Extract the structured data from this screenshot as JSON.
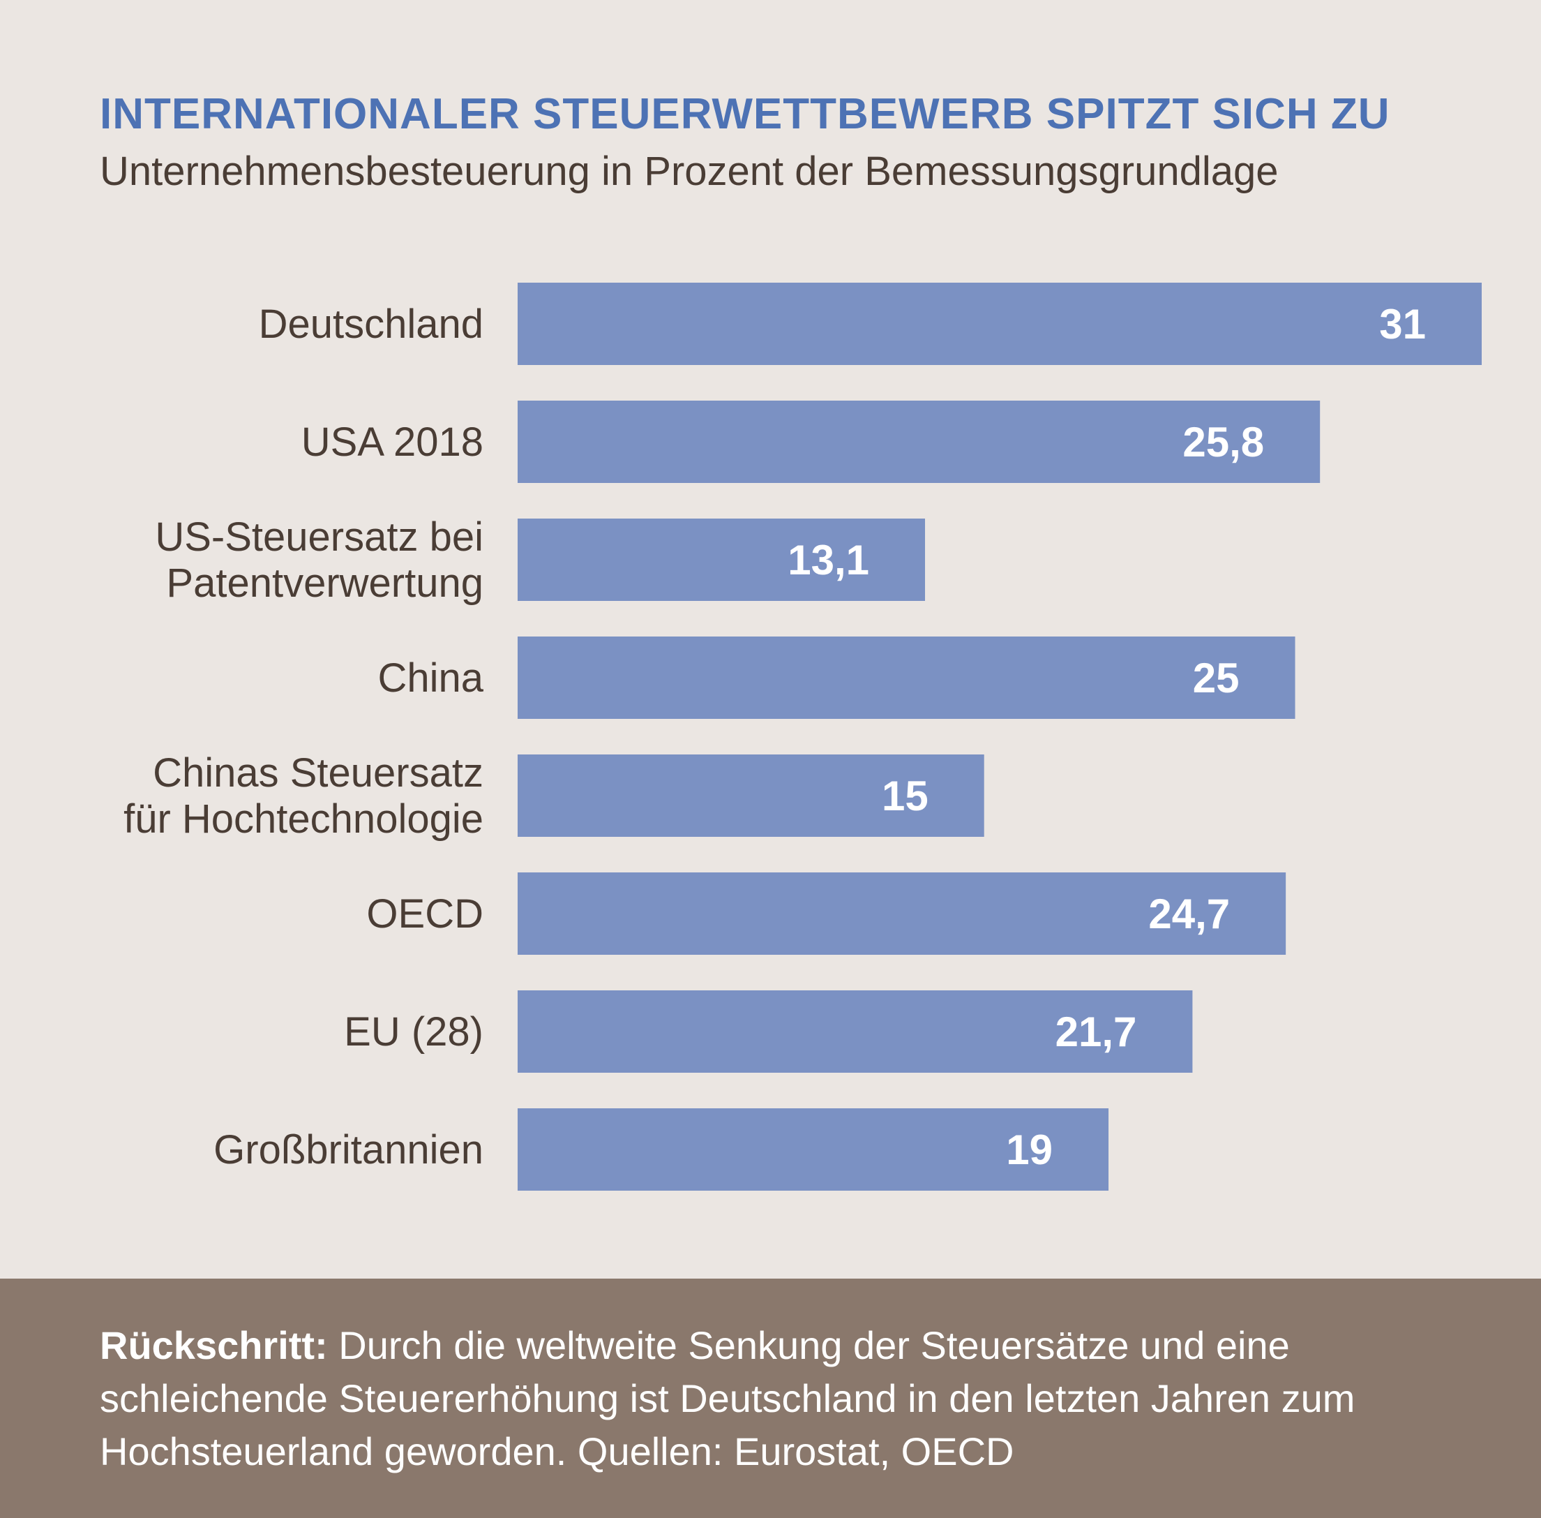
{
  "title": "INTERNATIONALER STEUERWETTBEWERB SPITZT SICH ZU",
  "subtitle": "Unternehmensbesteuerung in Prozent der Bemessungsgrundlage",
  "footer": {
    "lead": "Rückschritt:",
    "text": " Durch die weltweite Senkung der Steuersätze und eine schleichende Steuererhöhung ist Deutschland in den letzten Jahren zum Hochsteuerland geworden. Quellen: Eurostat, OECD"
  },
  "colors": {
    "bar": "#7b91c3",
    "title": "#4d72b4",
    "label": "#4a3d35",
    "value": "#ffffff",
    "background": "#ebe6e2",
    "footer": "#8a786c"
  },
  "chart_data": {
    "type": "bar",
    "orientation": "horizontal",
    "title": "INTERNATIONALER STEUERWETTBEWERB SPITZT SICH ZU",
    "subtitle": "Unternehmensbesteuerung in Prozent der Bemessungsgrundlage",
    "categories": [
      [
        "Deutschland"
      ],
      [
        "USA 2018"
      ],
      [
        "US-Steuersatz bei",
        "Patentverwertung"
      ],
      [
        "China"
      ],
      [
        "Chinas Steuersatz",
        "für Hochtechnologie"
      ],
      [
        "OECD"
      ],
      [
        "EU (28)"
      ],
      [
        "Großbritannien"
      ]
    ],
    "values": [
      31,
      25.8,
      13.1,
      25,
      15,
      24.7,
      21.7,
      19
    ],
    "value_labels": [
      "31",
      "25,8",
      "13,1",
      "25",
      "15",
      "24,7",
      "21,7",
      "19"
    ],
    "xlim": [
      0,
      31
    ],
    "grid": false,
    "legend": "none"
  }
}
